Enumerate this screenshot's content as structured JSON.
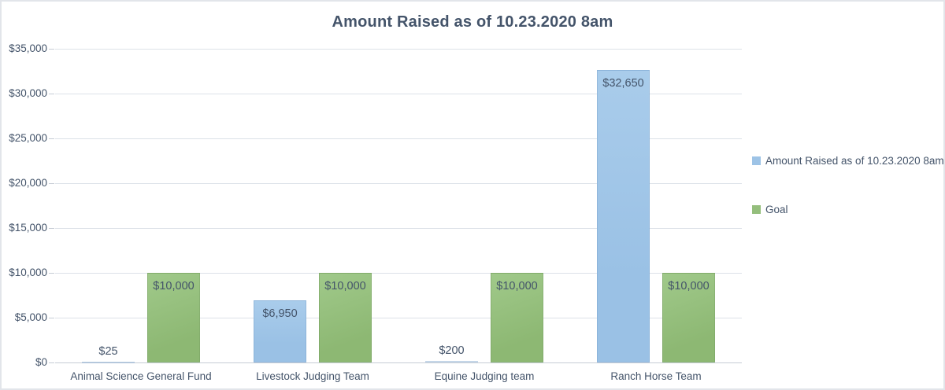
{
  "chart_data": {
    "type": "bar",
    "title": "Amount Raised as of 10.23.2020 8am",
    "categories": [
      "Animal Science General Fund",
      "Livestock Judging Team",
      "Equine Judging team",
      "Ranch Horse Team"
    ],
    "series": [
      {
        "name": "Amount Raised as of 10.23.2020 8am",
        "color": "#9DC3E6",
        "values": [
          25,
          6950,
          200,
          32650
        ],
        "labels": [
          "$25",
          "$6,950",
          "$200",
          "$32,650"
        ]
      },
      {
        "name": "Goal",
        "color": "#94BE7C",
        "values": [
          10000,
          10000,
          10000,
          10000
        ],
        "labels": [
          "$10,000",
          "$10,000",
          "$10,000",
          "$10,000"
        ]
      }
    ],
    "ylim": [
      0,
      35000
    ],
    "ytick_step": 5000,
    "ytick_labels": [
      "$0",
      "$5,000",
      "$10,000",
      "$15,000",
      "$20,000",
      "$25,000",
      "$30,000",
      "$35,000"
    ],
    "grid": "horizontal",
    "legend_position": "right",
    "colors": {
      "accent_text": "#44546A",
      "gridline": "#DCE1E8",
      "axis_line": "#C6CCD5",
      "series_raised": "#9DC3E6",
      "series_goal": "#94BE7C"
    }
  }
}
